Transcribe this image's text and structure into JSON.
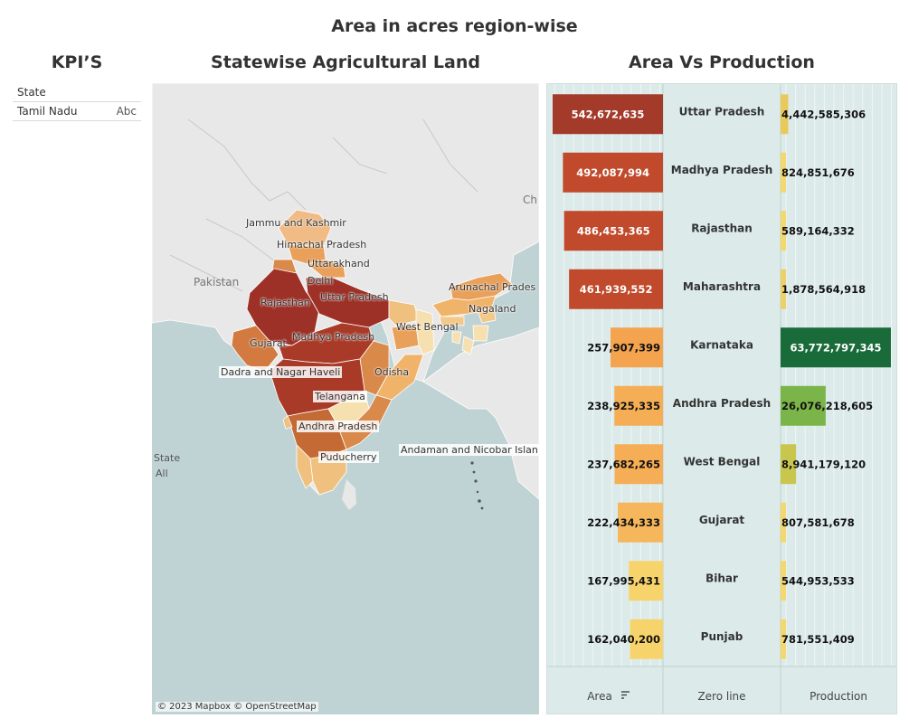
{
  "dashboard_title": "Area in acres region-wise",
  "kpi": {
    "title": "KPI’S",
    "header": "State",
    "value": "Tamil Nadu",
    "type_badge": "Abc"
  },
  "map": {
    "title": "Statewise Agricultural Land",
    "attribution": "© 2023 Mapbox © OpenStreetMap",
    "legend_title": "State",
    "legend_value": "All",
    "country_labels": [
      "Pakistan",
      "Ch"
    ],
    "state_labels": [
      "Jammu and Kashmir",
      "Himachal Pradesh",
      "Uttarakhand",
      "Delhi",
      "Rajasthan",
      "Uttar Pradesh",
      "Arunachal Prades",
      "Nagaland",
      "West Bengal",
      "Gujarat",
      "Madhya Pradesh",
      "Dadra and Nagar Haveli",
      "Odisha",
      "Telangana",
      "Andhra Pradesh",
      "Andaman and Nicobar Islan",
      "Puducherry"
    ],
    "colors": {
      "land": "#e8e8e8",
      "water": "#c0d3d4",
      "high": "#9e3127",
      "mid_high": "#b5442a",
      "mid": "#d27a3f",
      "mid_low": "#e9a05a",
      "low": "#f3c98a",
      "lowest": "#f7e0b0"
    }
  },
  "chart_data": {
    "type": "bar",
    "title": "Area Vs Production",
    "columns": [
      "Area",
      "Zero line",
      "Production"
    ],
    "categories": [
      "Uttar Pradesh",
      "Madhya Pradesh",
      "Rajasthan",
      "Maharashtra",
      "Karnataka",
      "Andhra Pradesh",
      "West Bengal",
      "Gujarat",
      "Bihar",
      "Punjab"
    ],
    "series": [
      {
        "name": "Area",
        "values": [
          542672635,
          492087994,
          486453365,
          461939552,
          257907399,
          238925335,
          237682265,
          222434333,
          167995431,
          162040200
        ],
        "labels": [
          "542,672,635",
          "492,087,994",
          "486,453,365",
          "461,939,552",
          "257,907,399",
          "238,925,335",
          "237,682,265",
          "222,434,333",
          "167,995,431",
          "162,040,200"
        ],
        "colors": [
          "#a33a2a",
          "#c04a2b",
          "#c04a2b",
          "#c04a2b",
          "#f4a34f",
          "#f5ae55",
          "#f5ae55",
          "#f6b65c",
          "#f7d46b",
          "#f7d46b"
        ]
      },
      {
        "name": "Production",
        "values": [
          4442585306,
          824851676,
          589164332,
          1878564918,
          63772797345,
          26076218605,
          8941179120,
          807581678,
          544953533,
          781551409
        ],
        "labels": [
          "4,442,585,306",
          "824,851,676",
          "589,164,332",
          "1,878,564,918",
          "63,772,797,345",
          "26,076,218,605",
          "8,941,179,120",
          "807,581,678",
          "544,953,533",
          "781,551,409"
        ],
        "colors": [
          "#e9c95a",
          "#f2d86e",
          "#f2d86e",
          "#ecd068",
          "#1a6b3a",
          "#7bb54a",
          "#c9c64e",
          "#f2d86e",
          "#f2d86e",
          "#f2d86e"
        ]
      }
    ]
  }
}
